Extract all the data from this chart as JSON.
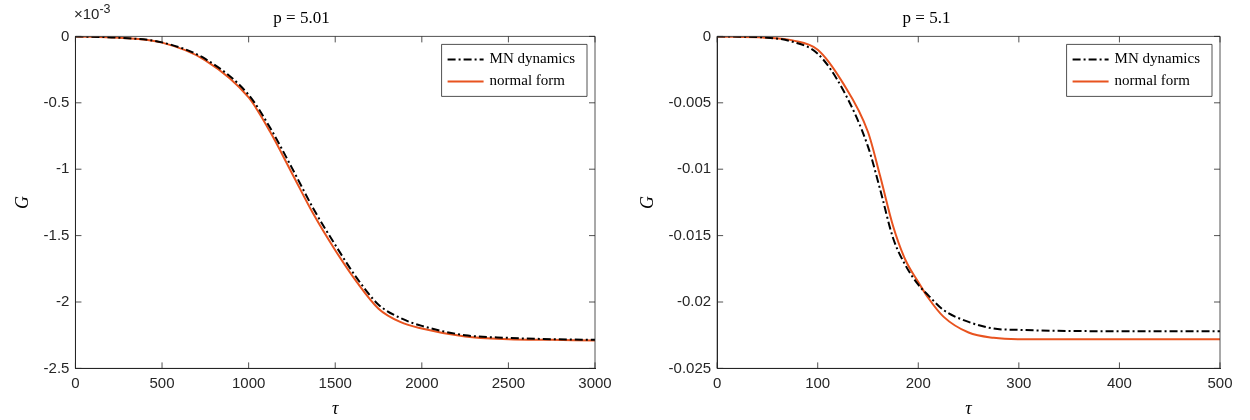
{
  "chart_data": [
    {
      "type": "line",
      "title": "p = 5.01",
      "xlabel": "τ",
      "ylabel": "G",
      "annotations": [
        "×10$^{-3}$"
      ],
      "xlim": [
        0,
        3000
      ],
      "xticks": [
        0,
        500,
        1000,
        1500,
        2000,
        2500,
        3000
      ],
      "ylim": [
        -2.5,
        0
      ],
      "yticks": [
        -2.5,
        -2,
        -1.5,
        -1,
        -0.5,
        0
      ],
      "grid": false,
      "legend": "top right",
      "series": [
        {
          "name": "MN dynamics",
          "color": "#000000",
          "line_style": "dashed",
          "x": [
            0,
            250,
            500,
            750,
            1000,
            1125,
            1250,
            1375,
            1500,
            1625,
            1750,
            1875,
            2000,
            2250,
            2500,
            2750,
            3000
          ],
          "values": [
            0,
            -0.01,
            -0.045,
            -0.17,
            -0.44,
            -0.69,
            -0.99,
            -1.3,
            -1.57,
            -1.82,
            -2.02,
            -2.12,
            -2.18,
            -2.25,
            -2.27,
            -2.28,
            -2.285
          ]
        },
        {
          "name": "normal form",
          "color": "#e8531f",
          "line_style": "solid",
          "x": [
            0,
            250,
            500,
            750,
            1000,
            1125,
            1250,
            1375,
            1500,
            1625,
            1750,
            1875,
            2000,
            2250,
            2500,
            2750,
            3000
          ],
          "values": [
            0,
            -0.01,
            -0.047,
            -0.18,
            -0.46,
            -0.72,
            -1.03,
            -1.34,
            -1.61,
            -1.85,
            -2.05,
            -2.15,
            -2.2,
            -2.26,
            -2.28,
            -2.285,
            -2.29
          ]
        }
      ]
    },
    {
      "type": "line",
      "title": "p = 5.1",
      "xlabel": "τ",
      "ylabel": "G",
      "xlim": [
        0,
        500
      ],
      "xticks": [
        0,
        100,
        200,
        300,
        400,
        500
      ],
      "ylim": [
        -0.025,
        0
      ],
      "yticks": [
        -0.025,
        -0.02,
        -0.015,
        -0.01,
        -0.005,
        0
      ],
      "grid": false,
      "legend": "top right",
      "series": [
        {
          "name": "MN dynamics",
          "color": "#000000",
          "line_style": "dashed",
          "x": [
            0,
            50,
            75,
            100,
            125,
            150,
            162,
            175,
            187,
            200,
            210,
            225,
            250,
            275,
            300,
            400,
            500
          ],
          "values": [
            0,
            -0.0001,
            -0.0004,
            -0.0013,
            -0.004,
            -0.0083,
            -0.0115,
            -0.0152,
            -0.0172,
            -0.0187,
            -0.0195,
            -0.0206,
            -0.0215,
            -0.022,
            -0.0221,
            -0.0222,
            -0.0222
          ]
        },
        {
          "name": "normal form",
          "color": "#e8531f",
          "line_style": "solid",
          "x": [
            0,
            50,
            75,
            100,
            125,
            150,
            162,
            175,
            187,
            200,
            210,
            225,
            250,
            275,
            300,
            400,
            500
          ],
          "values": [
            0,
            -0.0001,
            -0.0003,
            -0.001,
            -0.0035,
            -0.0072,
            -0.0105,
            -0.0143,
            -0.0168,
            -0.0185,
            -0.0197,
            -0.0211,
            -0.0223,
            -0.0227,
            -0.0228,
            -0.0228,
            -0.0228
          ]
        }
      ]
    }
  ]
}
